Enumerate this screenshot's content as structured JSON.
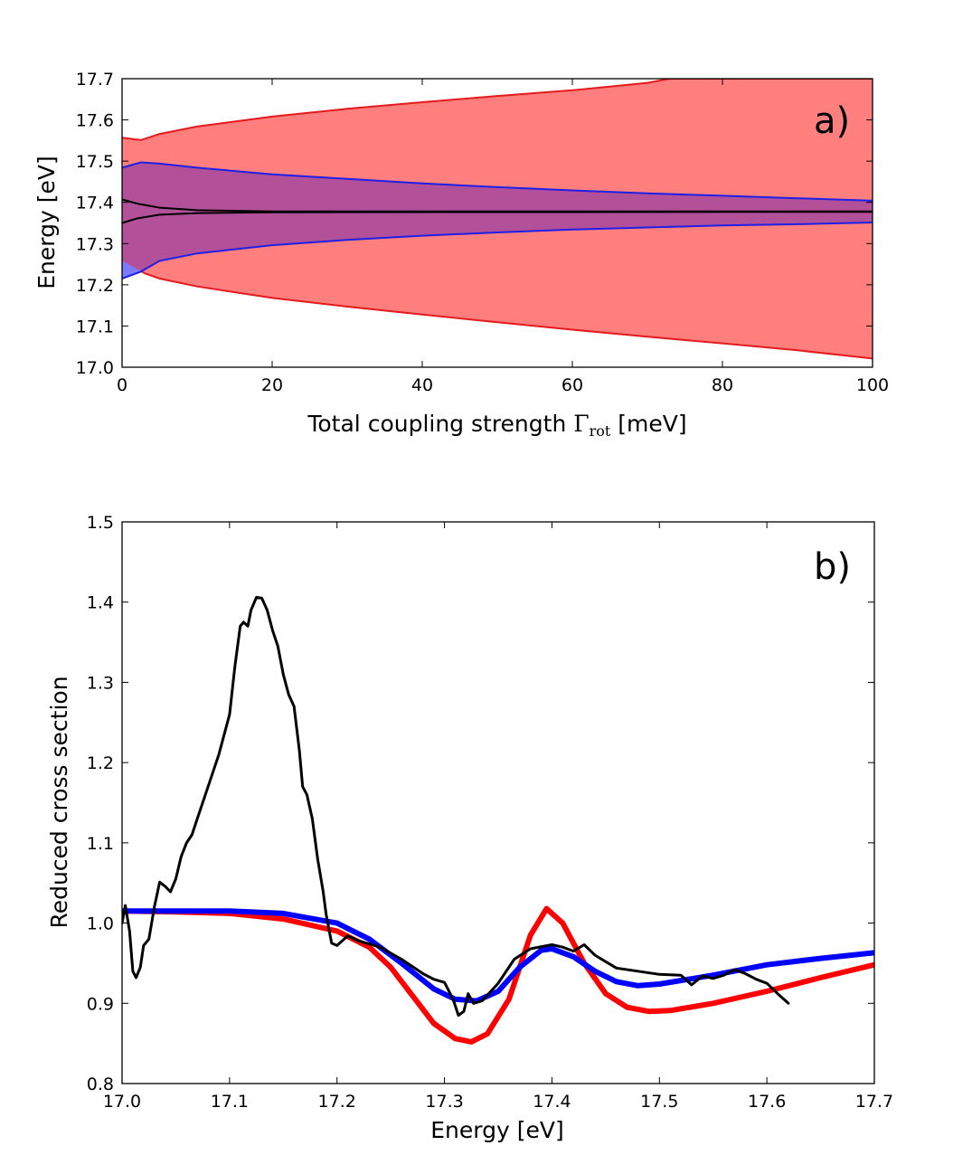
{
  "chart_data": [
    {
      "type": "area",
      "panel_label": "a)",
      "xlabel": "Total coupling strength Γrot [meV]",
      "xlabel_parts": {
        "before": "Total coupling strength ",
        "symbol": "Γ",
        "subscript": "rot",
        "after": " [meV]"
      },
      "ylabel": "Energy [eV]",
      "xlim": [
        0,
        100
      ],
      "ylim": [
        17.0,
        17.7
      ],
      "xticks": [
        "0",
        "20",
        "40",
        "60",
        "80",
        "100"
      ],
      "yticks": [
        "17.0",
        "17.1",
        "17.2",
        "17.3",
        "17.4",
        "17.5",
        "17.6",
        "17.7"
      ],
      "grid": false,
      "bands": [
        {
          "color": "#ff7f7f",
          "edge_color": "#e41a1c",
          "upper": [
            [
              0,
              17.557
            ],
            [
              2.5,
              17.551
            ],
            [
              5,
              17.566
            ],
            [
              10,
              17.584
            ],
            [
              20,
              17.608
            ],
            [
              30,
              17.627
            ],
            [
              40,
              17.643
            ],
            [
              50,
              17.658
            ],
            [
              60,
              17.672
            ],
            [
              70,
              17.69
            ],
            [
              73,
              17.7
            ],
            [
              100,
              17.7
            ]
          ],
          "lower": [
            [
              0,
              17.258
            ],
            [
              3,
              17.228
            ],
            [
              5,
              17.215
            ],
            [
              10,
              17.196
            ],
            [
              20,
              17.168
            ],
            [
              30,
              17.147
            ],
            [
              40,
              17.128
            ],
            [
              50,
              17.109
            ],
            [
              60,
              17.091
            ],
            [
              70,
              17.074
            ],
            [
              80,
              17.058
            ],
            [
              90,
              17.041
            ],
            [
              100,
              17.021
            ]
          ]
        },
        {
          "color": "#b25199",
          "edge_color": "#1f1fe6",
          "upper": [
            [
              0,
              17.484
            ],
            [
              2.5,
              17.497
            ],
            [
              5,
              17.494
            ],
            [
              10,
              17.484
            ],
            [
              20,
              17.468
            ],
            [
              30,
              17.457
            ],
            [
              40,
              17.446
            ],
            [
              50,
              17.437
            ],
            [
              60,
              17.429
            ],
            [
              70,
              17.422
            ],
            [
              80,
              17.416
            ],
            [
              90,
              17.41
            ],
            [
              100,
              17.404
            ]
          ],
          "lower": [
            [
              0,
              17.215
            ],
            [
              2.5,
              17.232
            ],
            [
              5,
              17.258
            ],
            [
              10,
              17.276
            ],
            [
              20,
              17.296
            ],
            [
              30,
              17.309
            ],
            [
              40,
              17.319
            ],
            [
              50,
              17.327
            ],
            [
              60,
              17.334
            ],
            [
              70,
              17.339
            ],
            [
              80,
              17.344
            ],
            [
              90,
              17.347
            ],
            [
              100,
              17.351
            ]
          ],
          "underlap_color": "#7b7bff"
        }
      ],
      "lines": [
        {
          "color": "#000000",
          "values": [
            [
              0,
              17.407
            ],
            [
              2,
              17.397
            ],
            [
              5,
              17.387
            ],
            [
              10,
              17.381
            ],
            [
              20,
              17.378
            ],
            [
              100,
              17.378
            ]
          ]
        },
        {
          "color": "#000000",
          "values": [
            [
              0,
              17.35
            ],
            [
              2,
              17.361
            ],
            [
              5,
              17.37
            ],
            [
              10,
              17.374
            ],
            [
              20,
              17.376
            ],
            [
              100,
              17.377
            ]
          ]
        }
      ]
    },
    {
      "type": "line",
      "panel_label": "b)",
      "xlabel": "Energy [eV]",
      "ylabel": "Reduced cross section",
      "xlim": [
        17.0,
        17.7
      ],
      "ylim": [
        0.8,
        1.5
      ],
      "xticks": [
        "17.0",
        "17.1",
        "17.2",
        "17.3",
        "17.4",
        "17.5",
        "17.6",
        "17.7"
      ],
      "yticks": [
        "0.8",
        "0.9",
        "1.0",
        "1.1",
        "1.2",
        "1.3",
        "1.4",
        "1.5"
      ],
      "grid": false,
      "series": [
        {
          "color": "#000000",
          "width": 3,
          "values": [
            [
              17.0,
              1.0
            ],
            [
              17.003,
              1.022
            ],
            [
              17.007,
              0.99
            ],
            [
              17.01,
              0.94
            ],
            [
              17.013,
              0.932
            ],
            [
              17.017,
              0.945
            ],
            [
              17.02,
              0.972
            ],
            [
              17.025,
              0.98
            ],
            [
              17.03,
              1.02
            ],
            [
              17.035,
              1.051
            ],
            [
              17.04,
              1.046
            ],
            [
              17.045,
              1.039
            ],
            [
              17.05,
              1.055
            ],
            [
              17.055,
              1.083
            ],
            [
              17.06,
              1.1
            ],
            [
              17.065,
              1.11
            ],
            [
              17.07,
              1.13
            ],
            [
              17.08,
              1.17
            ],
            [
              17.09,
              1.21
            ],
            [
              17.1,
              1.26
            ],
            [
              17.105,
              1.32
            ],
            [
              17.11,
              1.37
            ],
            [
              17.113,
              1.375
            ],
            [
              17.117,
              1.37
            ],
            [
              17.12,
              1.39
            ],
            [
              17.125,
              1.406
            ],
            [
              17.13,
              1.405
            ],
            [
              17.135,
              1.39
            ],
            [
              17.14,
              1.365
            ],
            [
              17.145,
              1.345
            ],
            [
              17.15,
              1.31
            ],
            [
              17.155,
              1.285
            ],
            [
              17.16,
              1.27
            ],
            [
              17.165,
              1.215
            ],
            [
              17.168,
              1.17
            ],
            [
              17.172,
              1.16
            ],
            [
              17.177,
              1.13
            ],
            [
              17.182,
              1.08
            ],
            [
              17.187,
              1.04
            ],
            [
              17.19,
              1.01
            ],
            [
              17.195,
              0.975
            ],
            [
              17.2,
              0.972
            ],
            [
              17.21,
              0.984
            ],
            [
              17.22,
              0.978
            ],
            [
              17.24,
              0.97
            ],
            [
              17.26,
              0.955
            ],
            [
              17.28,
              0.937
            ],
            [
              17.29,
              0.93
            ],
            [
              17.3,
              0.926
            ],
            [
              17.308,
              0.905
            ],
            [
              17.313,
              0.885
            ],
            [
              17.318,
              0.89
            ],
            [
              17.322,
              0.912
            ],
            [
              17.327,
              0.9
            ],
            [
              17.335,
              0.903
            ],
            [
              17.35,
              0.925
            ],
            [
              17.365,
              0.955
            ],
            [
              17.38,
              0.968
            ],
            [
              17.4,
              0.973
            ],
            [
              17.41,
              0.97
            ],
            [
              17.42,
              0.965
            ],
            [
              17.43,
              0.973
            ],
            [
              17.44,
              0.96
            ],
            [
              17.46,
              0.944
            ],
            [
              17.48,
              0.94
            ],
            [
              17.5,
              0.936
            ],
            [
              17.52,
              0.935
            ],
            [
              17.53,
              0.923
            ],
            [
              17.54,
              0.934
            ],
            [
              17.55,
              0.931
            ],
            [
              17.56,
              0.935
            ],
            [
              17.57,
              0.942
            ],
            [
              17.58,
              0.937
            ],
            [
              17.59,
              0.93
            ],
            [
              17.6,
              0.925
            ],
            [
              17.61,
              0.912
            ],
            [
              17.62,
              0.9
            ]
          ]
        },
        {
          "color": "#ff0000",
          "width": 6,
          "values": [
            [
              17.0,
              1.015
            ],
            [
              17.05,
              1.014
            ],
            [
              17.1,
              1.012
            ],
            [
              17.15,
              1.005
            ],
            [
              17.2,
              0.99
            ],
            [
              17.23,
              0.97
            ],
            [
              17.25,
              0.945
            ],
            [
              17.27,
              0.91
            ],
            [
              17.29,
              0.875
            ],
            [
              17.31,
              0.856
            ],
            [
              17.325,
              0.852
            ],
            [
              17.34,
              0.862
            ],
            [
              17.36,
              0.905
            ],
            [
              17.38,
              0.985
            ],
            [
              17.395,
              1.018
            ],
            [
              17.41,
              1.0
            ],
            [
              17.43,
              0.95
            ],
            [
              17.45,
              0.912
            ],
            [
              17.47,
              0.895
            ],
            [
              17.49,
              0.89
            ],
            [
              17.51,
              0.891
            ],
            [
              17.55,
              0.9
            ],
            [
              17.6,
              0.915
            ],
            [
              17.65,
              0.932
            ],
            [
              17.7,
              0.948
            ]
          ]
        },
        {
          "color": "#0000ff",
          "width": 6,
          "values": [
            [
              17.0,
              1.015
            ],
            [
              17.05,
              1.015
            ],
            [
              17.1,
              1.015
            ],
            [
              17.15,
              1.012
            ],
            [
              17.2,
              1.0
            ],
            [
              17.23,
              0.98
            ],
            [
              17.26,
              0.95
            ],
            [
              17.29,
              0.918
            ],
            [
              17.31,
              0.905
            ],
            [
              17.33,
              0.903
            ],
            [
              17.35,
              0.915
            ],
            [
              17.37,
              0.945
            ],
            [
              17.39,
              0.966
            ],
            [
              17.4,
              0.968
            ],
            [
              17.42,
              0.958
            ],
            [
              17.44,
              0.94
            ],
            [
              17.46,
              0.927
            ],
            [
              17.48,
              0.922
            ],
            [
              17.5,
              0.924
            ],
            [
              17.55,
              0.935
            ],
            [
              17.6,
              0.948
            ],
            [
              17.65,
              0.956
            ],
            [
              17.7,
              0.963
            ]
          ]
        }
      ]
    }
  ]
}
